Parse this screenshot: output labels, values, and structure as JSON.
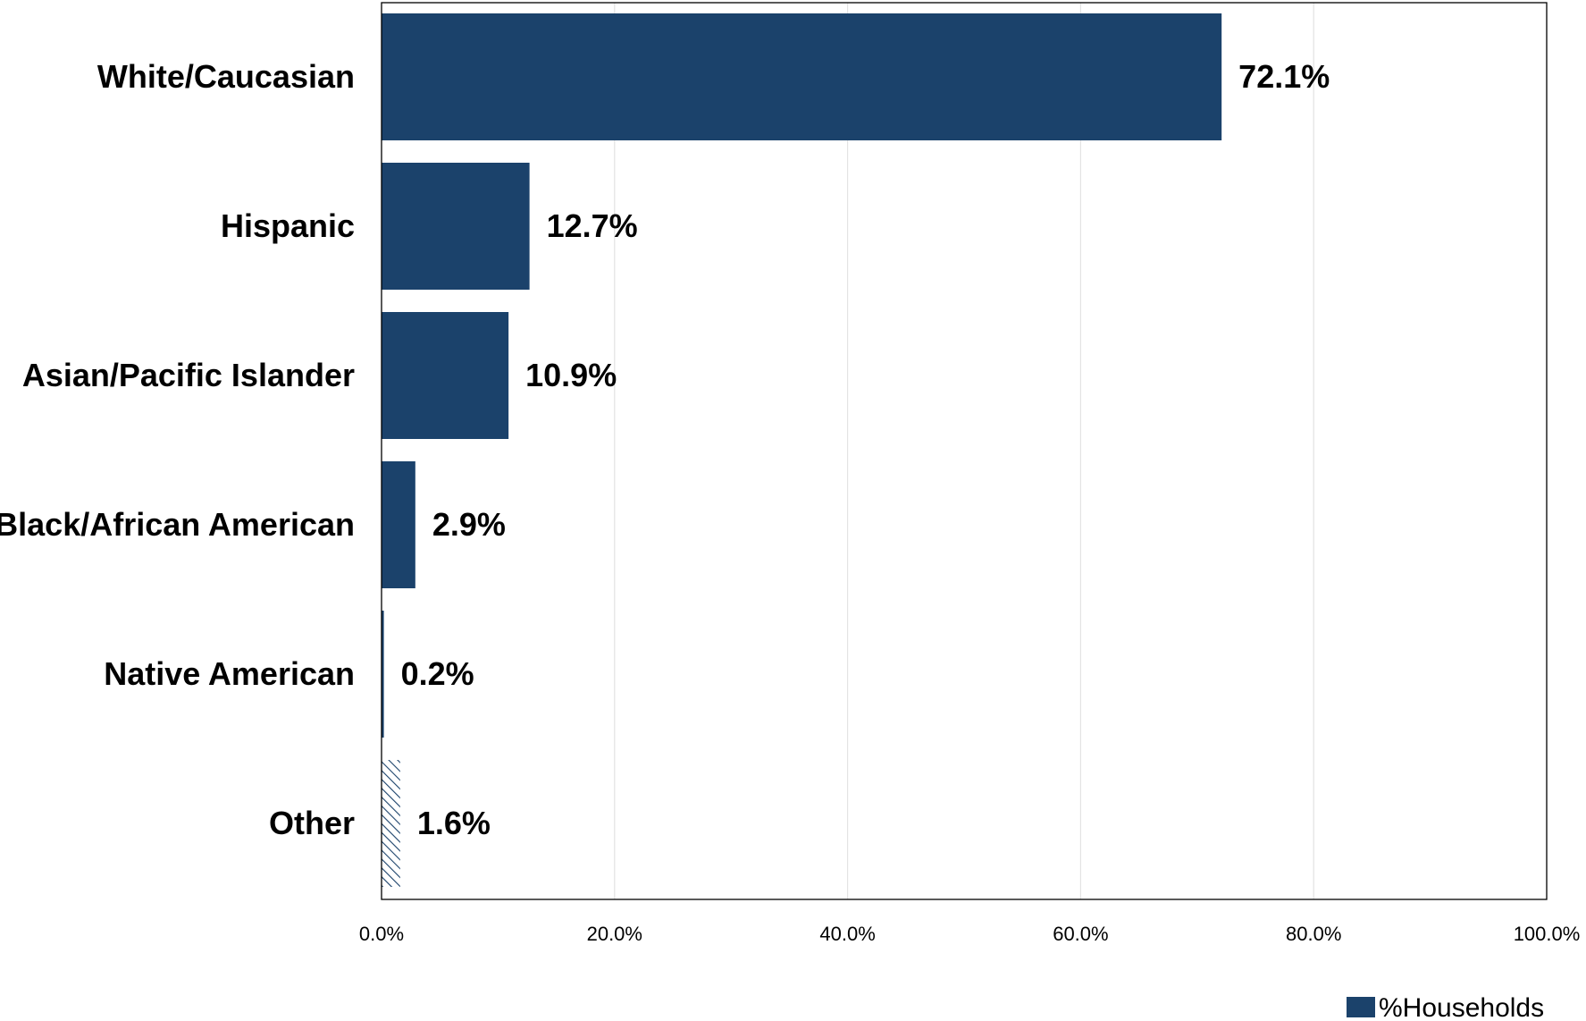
{
  "chart_data": {
    "type": "bar",
    "orientation": "horizontal",
    "title": "",
    "xlabel": "",
    "ylabel": "",
    "xlim": [
      0,
      100
    ],
    "x_ticks": [
      "0.0%",
      "20.0%",
      "40.0%",
      "60.0%",
      "80.0%",
      "100.0%"
    ],
    "grid": true,
    "legend_position": "bottom-right",
    "categories": [
      "White/Caucasian",
      "Hispanic",
      "Asian/Pacific Islander",
      "Black/African American",
      "Native American",
      "Other"
    ],
    "series": [
      {
        "name": "%Households",
        "values": [
          72.1,
          12.7,
          10.9,
          2.9,
          0.2,
          1.6
        ],
        "data_labels": [
          "72.1%",
          "12.7%",
          "10.9%",
          "2.9%",
          "0.2%",
          "1.6%"
        ],
        "color": "#1b426b",
        "hatched_categories": [
          "Other"
        ]
      }
    ]
  }
}
